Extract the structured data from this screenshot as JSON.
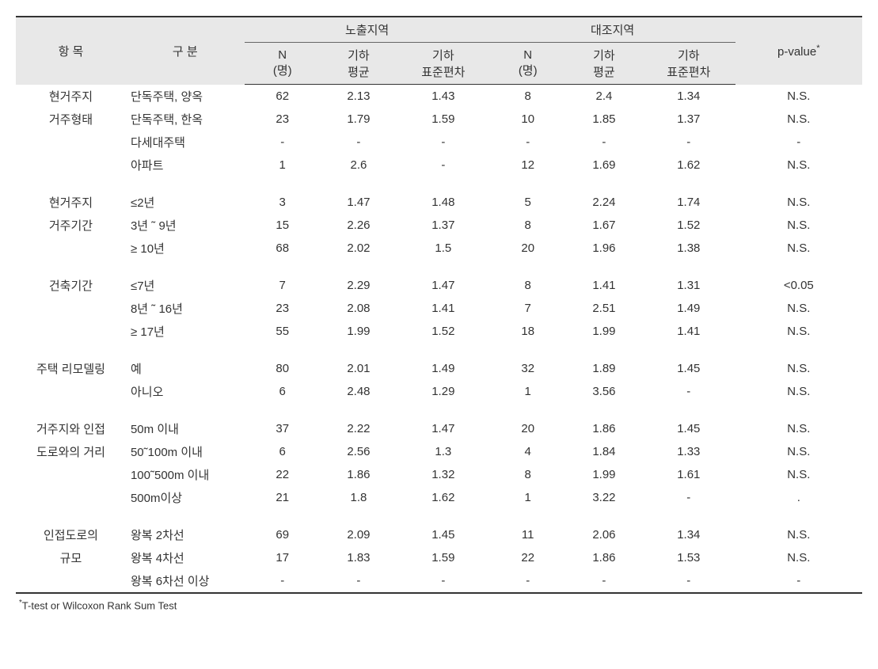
{
  "header": {
    "item": "항 목",
    "gubun": "구 분",
    "group1": "노출지역",
    "group2": "대조지역",
    "N": "N",
    "N_unit": "(명)",
    "mean_l1": "기하",
    "mean_l2": "평균",
    "sd_l1": "기하",
    "sd_l2": "표준편차",
    "pvalue": "p-value",
    "pvalue_sup": "*"
  },
  "rows": [
    {
      "item": "현거주지",
      "gubun": "단독주택, 양옥",
      "n1": "62",
      "m1": "2.13",
      "s1": "1.43",
      "n2": "8",
      "m2": "2.4",
      "s2": "1.34",
      "p": "N.S."
    },
    {
      "item": "거주형태",
      "gubun": "단독주택, 한옥",
      "n1": "23",
      "m1": "1.79",
      "s1": "1.59",
      "n2": "10",
      "m2": "1.85",
      "s2": "1.37",
      "p": "N.S."
    },
    {
      "item": "",
      "gubun": "다세대주택",
      "n1": "-",
      "m1": "-",
      "s1": "-",
      "n2": "-",
      "m2": "-",
      "s2": "-",
      "p": "-"
    },
    {
      "item": "",
      "gubun": "아파트",
      "n1": "1",
      "m1": "2.6",
      "s1": "-",
      "n2": "12",
      "m2": "1.69",
      "s2": "1.62",
      "p": "N.S."
    },
    {
      "spacer": true
    },
    {
      "item": "현거주지",
      "gubun": "≤2년",
      "n1": "3",
      "m1": "1.47",
      "s1": "1.48",
      "n2": "5",
      "m2": "2.24",
      "s2": "1.74",
      "p": "N.S."
    },
    {
      "item": "거주기간",
      "gubun": "3년 ˜ 9년",
      "n1": "15",
      "m1": "2.26",
      "s1": "1.37",
      "n2": "8",
      "m2": "1.67",
      "s2": "1.52",
      "p": "N.S."
    },
    {
      "item": "",
      "gubun": "≥ 10년",
      "n1": "68",
      "m1": "2.02",
      "s1": "1.5",
      "n2": "20",
      "m2": "1.96",
      "s2": "1.38",
      "p": "N.S."
    },
    {
      "spacer": true
    },
    {
      "item": "건축기간",
      "gubun": "≤7년",
      "n1": "7",
      "m1": "2.29",
      "s1": "1.47",
      "n2": "8",
      "m2": "1.41",
      "s2": "1.31",
      "p": "<0.05"
    },
    {
      "item": "",
      "gubun": "8년 ˜ 16년",
      "n1": "23",
      "m1": "2.08",
      "s1": "1.41",
      "n2": "7",
      "m2": "2.51",
      "s2": "1.49",
      "p": "N.S."
    },
    {
      "item": "",
      "gubun": "≥ 17년",
      "n1": "55",
      "m1": "1.99",
      "s1": "1.52",
      "n2": "18",
      "m2": "1.99",
      "s2": "1.41",
      "p": "N.S."
    },
    {
      "spacer": true
    },
    {
      "item": "주택 리모델링",
      "gubun": "예",
      "n1": "80",
      "m1": "2.01",
      "s1": "1.49",
      "n2": "32",
      "m2": "1.89",
      "s2": "1.45",
      "p": "N.S."
    },
    {
      "item": "",
      "gubun": "아니오",
      "n1": "6",
      "m1": "2.48",
      "s1": "1.29",
      "n2": "1",
      "m2": "3.56",
      "s2": "-",
      "p": "N.S."
    },
    {
      "spacer": true
    },
    {
      "item": "거주지와 인접",
      "gubun": "50m 이내",
      "n1": "37",
      "m1": "2.22",
      "s1": "1.47",
      "n2": "20",
      "m2": "1.86",
      "s2": "1.45",
      "p": "N.S."
    },
    {
      "item": "도로와의 거리",
      "gubun": "50˜100m 이내",
      "n1": "6",
      "m1": "2.56",
      "s1": "1.3",
      "n2": "4",
      "m2": "1.84",
      "s2": "1.33",
      "p": "N.S."
    },
    {
      "item": "",
      "gubun": "100˜500m 이내",
      "n1": "22",
      "m1": "1.86",
      "s1": "1.32",
      "n2": "8",
      "m2": "1.99",
      "s2": "1.61",
      "p": "N.S."
    },
    {
      "item": "",
      "gubun": "500m이상",
      "n1": "21",
      "m1": "1.8",
      "s1": "1.62",
      "n2": "1",
      "m2": "3.22",
      "s2": "-",
      "p": "."
    },
    {
      "spacer": true
    },
    {
      "item": "인접도로의",
      "gubun": "왕복 2차선",
      "n1": "69",
      "m1": "2.09",
      "s1": "1.45",
      "n2": "11",
      "m2": "2.06",
      "s2": "1.34",
      "p": "N.S."
    },
    {
      "item": "규모",
      "gubun": "왕복 4차선",
      "n1": "17",
      "m1": "1.83",
      "s1": "1.59",
      "n2": "22",
      "m2": "1.86",
      "s2": "1.53",
      "p": "N.S."
    },
    {
      "item": "",
      "gubun": "왕복 6차선 이상",
      "n1": "-",
      "m1": "-",
      "s1": "-",
      "n2": "-",
      "m2": "-",
      "s2": "-",
      "p": "-",
      "last": true
    }
  ],
  "footnote": {
    "sup": "*",
    "text": "T-test or Wilcoxon Rank Sum Test"
  },
  "style": {
    "bg": "#ffffff",
    "header_bg": "#e8e8e8",
    "border_color": "#333333",
    "text_color": "#333333",
    "font_size": 15,
    "footnote_font_size": 13,
    "col_widths": {
      "item": "13%",
      "gubun": "14%",
      "n1": "9%",
      "m1": "9%",
      "s1": "11%",
      "n2": "9%",
      "m2": "9%",
      "s2": "11%",
      "p": "15%"
    }
  }
}
